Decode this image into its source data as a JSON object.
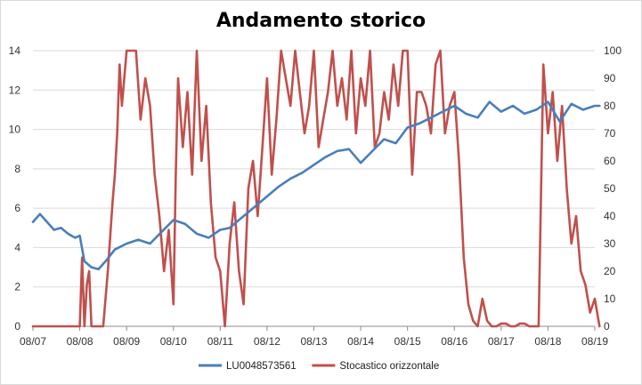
{
  "chart_data": {
    "type": "line",
    "title": "Andamento storico",
    "xlabel": "",
    "ylabel": "",
    "y2label": "",
    "categories": [
      "08/07",
      "08/08",
      "08/09",
      "08/10",
      "08/11",
      "08/12",
      "08/13",
      "08/14",
      "08/15",
      "08/16",
      "08/17",
      "08/18",
      "08/19"
    ],
    "ylim": [
      0,
      14
    ],
    "y_ticks": [
      0,
      2,
      4,
      6,
      8,
      10,
      12,
      14
    ],
    "y2lim": [
      0,
      100
    ],
    "y2_ticks": [
      0,
      10,
      20,
      30,
      40,
      50,
      60,
      70,
      80,
      90,
      100
    ],
    "grid": "horizontal",
    "legend_position": "bottom",
    "series": [
      {
        "name": "LU0048573561",
        "axis": "left",
        "color": "#4a7ebb",
        "x": [
          0.0,
          0.15,
          0.3,
          0.45,
          0.6,
          0.75,
          0.9,
          1.0,
          1.1,
          1.25,
          1.4,
          1.55,
          1.75,
          2.0,
          2.25,
          2.5,
          2.75,
          3.0,
          3.25,
          3.5,
          3.75,
          4.0,
          4.2,
          4.4,
          4.6,
          4.8,
          5.0,
          5.25,
          5.5,
          5.75,
          6.0,
          6.25,
          6.5,
          6.75,
          7.0,
          7.25,
          7.5,
          7.75,
          8.0,
          8.25,
          8.5,
          8.75,
          9.0,
          9.25,
          9.5,
          9.75,
          10.0,
          10.25,
          10.5,
          10.75,
          11.0,
          11.25,
          11.5,
          11.75,
          12.0,
          12.1
        ],
        "values": [
          5.3,
          5.7,
          5.3,
          4.9,
          5.0,
          4.7,
          4.5,
          4.6,
          3.3,
          3.0,
          2.9,
          3.3,
          3.9,
          4.2,
          4.4,
          4.2,
          4.8,
          5.4,
          5.2,
          4.7,
          4.5,
          4.9,
          5.0,
          5.4,
          5.8,
          6.2,
          6.6,
          7.1,
          7.5,
          7.8,
          8.2,
          8.6,
          8.9,
          9.0,
          8.3,
          8.9,
          9.5,
          9.3,
          10.1,
          10.3,
          10.6,
          10.9,
          11.2,
          10.8,
          10.6,
          11.4,
          10.9,
          11.2,
          10.8,
          11.0,
          11.4,
          10.4,
          11.3,
          11.0,
          11.2,
          11.2
        ]
      },
      {
        "name": "Stocastico orizzontale",
        "axis": "right",
        "color": "#c0504d",
        "x": [
          0.0,
          0.5,
          1.0,
          1.05,
          1.1,
          1.15,
          1.2,
          1.25,
          1.3,
          1.35,
          1.4,
          1.5,
          1.6,
          1.7,
          1.75,
          1.8,
          1.85,
          1.9,
          2.0,
          2.1,
          2.2,
          2.3,
          2.4,
          2.5,
          2.6,
          2.7,
          2.8,
          2.9,
          3.0,
          3.05,
          3.1,
          3.2,
          3.3,
          3.4,
          3.5,
          3.6,
          3.7,
          3.8,
          3.9,
          4.0,
          4.1,
          4.2,
          4.3,
          4.4,
          4.5,
          4.6,
          4.7,
          4.8,
          4.9,
          5.0,
          5.1,
          5.2,
          5.3,
          5.4,
          5.5,
          5.6,
          5.7,
          5.8,
          5.9,
          6.0,
          6.1,
          6.2,
          6.3,
          6.4,
          6.5,
          6.6,
          6.7,
          6.8,
          6.9,
          7.0,
          7.1,
          7.2,
          7.3,
          7.4,
          7.5,
          7.6,
          7.7,
          7.8,
          7.9,
          8.0,
          8.1,
          8.2,
          8.3,
          8.4,
          8.5,
          8.6,
          8.7,
          8.8,
          8.9,
          9.0,
          9.1,
          9.2,
          9.3,
          9.4,
          9.5,
          9.6,
          9.7,
          9.8,
          9.9,
          10.0,
          10.1,
          10.2,
          10.3,
          10.4,
          10.5,
          10.6,
          10.7,
          10.8,
          10.9,
          11.0,
          11.1,
          11.2,
          11.3,
          11.4,
          11.5,
          11.6,
          11.7,
          11.8,
          11.9,
          12.0,
          12.1
        ],
        "values": [
          0,
          0,
          0,
          25,
          0,
          15,
          20,
          0,
          0,
          0,
          0,
          0,
          20,
          45,
          55,
          70,
          95,
          80,
          100,
          100,
          100,
          75,
          90,
          80,
          55,
          40,
          20,
          35,
          8,
          55,
          90,
          65,
          85,
          55,
          100,
          60,
          80,
          45,
          25,
          20,
          0,
          30,
          45,
          20,
          8,
          50,
          60,
          40,
          65,
          90,
          55,
          75,
          100,
          90,
          80,
          100,
          85,
          70,
          80,
          100,
          65,
          75,
          85,
          100,
          80,
          90,
          75,
          100,
          70,
          90,
          80,
          100,
          65,
          70,
          85,
          75,
          95,
          80,
          100,
          100,
          55,
          85,
          85,
          80,
          70,
          95,
          100,
          70,
          80,
          85,
          60,
          25,
          8,
          2,
          0,
          10,
          2,
          0,
          0,
          1,
          1,
          0,
          0,
          1,
          1,
          0,
          0,
          0,
          95,
          70,
          85,
          60,
          80,
          50,
          30,
          40,
          20,
          15,
          5,
          10,
          0
        ]
      }
    ]
  }
}
